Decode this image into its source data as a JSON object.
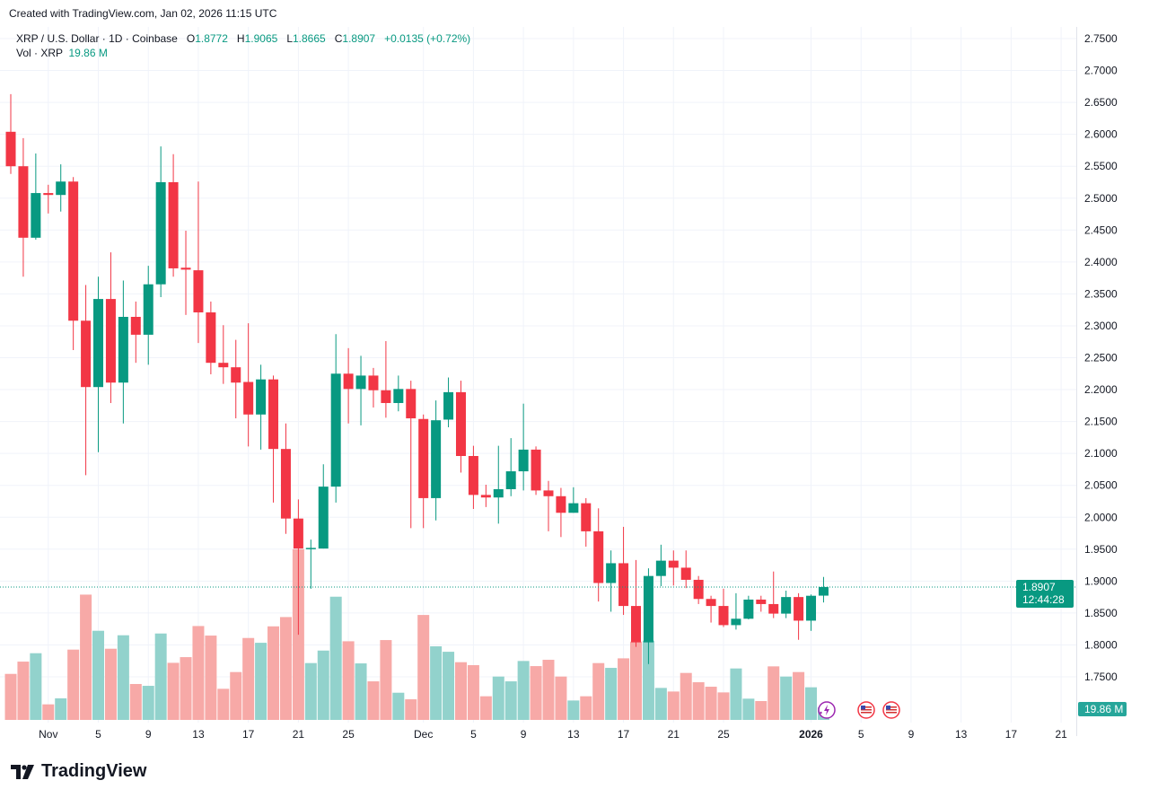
{
  "header": {
    "created": "Created with TradingView.com, Jan 02, 2026 11:15 UTC"
  },
  "legend": {
    "symbol": "XRP / U.S. Dollar · 1D · Coinbase",
    "o_label": "O",
    "o": "1.8772",
    "h_label": "H",
    "h": "1.9065",
    "l_label": "L",
    "l": "1.8665",
    "c_label": "C",
    "c": "1.8907",
    "change": "+0.0135 (+0.72%)",
    "vol_label": "Vol · XRP",
    "vol": "19.86 M"
  },
  "price_label": {
    "price": "1.8907",
    "countdown": "12:44:28"
  },
  "volume_label": "19.86 M",
  "logo": {
    "text": "TradingView"
  },
  "colors": {
    "up": "#089981",
    "down": "#f23645",
    "vol_up": "#92d2cc",
    "vol_down": "#f7a9a7",
    "grid": "#f0f3fa",
    "price_line": "#089981"
  },
  "event_icons": [
    "lightning-sparkle-icon",
    "us-flag-icon",
    "us-flag-icon"
  ],
  "chart_data": {
    "type": "candlestick",
    "title": "",
    "y_ticks": [
      "2.7500",
      "2.7000",
      "2.6500",
      "2.6000",
      "2.5500",
      "2.5000",
      "2.4500",
      "2.4000",
      "2.3500",
      "2.3000",
      "2.2500",
      "2.2000",
      "2.1500",
      "2.1000",
      "2.0500",
      "2.0000",
      "1.9500",
      "1.9000",
      "1.8500",
      "1.8000",
      "1.7500"
    ],
    "ylim": [
      1.75,
      2.75
    ],
    "x_ticks": [
      {
        "label": "Nov",
        "date": "2025-11-01"
      },
      {
        "label": "5",
        "date": "2025-11-05"
      },
      {
        "label": "9",
        "date": "2025-11-09"
      },
      {
        "label": "13",
        "date": "2025-11-13"
      },
      {
        "label": "17",
        "date": "2025-11-17"
      },
      {
        "label": "21",
        "date": "2025-11-21"
      },
      {
        "label": "25",
        "date": "2025-11-25"
      },
      {
        "label": "Dec",
        "date": "2025-12-01"
      },
      {
        "label": "5",
        "date": "2025-12-05"
      },
      {
        "label": "9",
        "date": "2025-12-09"
      },
      {
        "label": "13",
        "date": "2025-12-13"
      },
      {
        "label": "17",
        "date": "2025-12-17"
      },
      {
        "label": "21",
        "date": "2025-12-21"
      },
      {
        "label": "25",
        "date": "2025-12-25"
      },
      {
        "label": "2026",
        "date": "2026-01-01"
      },
      {
        "label": "5",
        "date": "2026-01-05"
      },
      {
        "label": "9",
        "date": "2026-01-09"
      },
      {
        "label": "13",
        "date": "2026-01-13"
      },
      {
        "label": "17",
        "date": "2026-01-17"
      },
      {
        "label": "21",
        "date": "2026-01-21"
      }
    ],
    "volume_unit": "M",
    "columns": [
      "date",
      "open",
      "high",
      "low",
      "close",
      "volume"
    ],
    "candles": [
      [
        "2025-10-29",
        2.604,
        2.663,
        2.538,
        2.55,
        72.8
      ],
      [
        "2025-10-30",
        2.55,
        2.594,
        2.377,
        2.438,
        92.2
      ],
      [
        "2025-10-31",
        2.438,
        2.57,
        2.435,
        2.508,
        105.5
      ],
      [
        "2025-11-01",
        2.508,
        2.521,
        2.476,
        2.505,
        24.6
      ],
      [
        "2025-11-02",
        2.505,
        2.553,
        2.479,
        2.526,
        34.1
      ],
      [
        "2025-11-03",
        2.526,
        2.533,
        2.262,
        2.308,
        111.2
      ],
      [
        "2025-11-04",
        2.308,
        2.364,
        2.066,
        2.204,
        198.2
      ],
      [
        "2025-11-05",
        2.204,
        2.377,
        2.102,
        2.342,
        141.0
      ],
      [
        "2025-11-06",
        2.342,
        2.415,
        2.179,
        2.211,
        112.6
      ],
      [
        "2025-11-07",
        2.211,
        2.371,
        2.147,
        2.314,
        133.9
      ],
      [
        "2025-11-08",
        2.314,
        2.338,
        2.242,
        2.286,
        56.8
      ],
      [
        "2025-11-09",
        2.286,
        2.394,
        2.239,
        2.365,
        53.9
      ],
      [
        "2025-11-10",
        2.365,
        2.581,
        2.345,
        2.525,
        136.7
      ],
      [
        "2025-11-11",
        2.525,
        2.569,
        2.377,
        2.39,
        90.3
      ],
      [
        "2025-11-12",
        2.391,
        2.449,
        2.317,
        2.388,
        99.3
      ],
      [
        "2025-11-13",
        2.387,
        2.526,
        2.273,
        2.321,
        148.5
      ],
      [
        "2025-11-14",
        2.321,
        2.338,
        2.224,
        2.242,
        133.4
      ],
      [
        "2025-11-15",
        2.242,
        2.301,
        2.209,
        2.235,
        49.2
      ],
      [
        "2025-11-16",
        2.235,
        2.278,
        2.155,
        2.211,
        75.7
      ],
      [
        "2025-11-17",
        2.212,
        2.304,
        2.111,
        2.161,
        129.6
      ],
      [
        "2025-11-18",
        2.161,
        2.239,
        2.106,
        2.216,
        122.0
      ],
      [
        "2025-11-19",
        2.216,
        2.222,
        2.023,
        2.107,
        148.0
      ],
      [
        "2025-11-20",
        2.107,
        2.147,
        1.974,
        1.998,
        162.7
      ],
      [
        "2025-11-21",
        1.998,
        2.028,
        1.816,
        1.951,
        270.0
      ],
      [
        "2025-11-22",
        1.95,
        1.965,
        1.888,
        1.952,
        89.9
      ],
      [
        "2025-11-23",
        1.951,
        2.083,
        1.951,
        2.048,
        109.7
      ],
      [
        "2025-11-24",
        2.048,
        2.287,
        2.023,
        2.225,
        194.9
      ],
      [
        "2025-11-25",
        2.225,
        2.265,
        2.147,
        2.201,
        124.4
      ],
      [
        "2025-11-26",
        2.201,
        2.253,
        2.144,
        2.222,
        89.4
      ],
      [
        "2025-11-27",
        2.222,
        2.234,
        2.172,
        2.199,
        61.0
      ],
      [
        "2025-11-28",
        2.199,
        2.276,
        2.156,
        2.179,
        126.3
      ],
      [
        "2025-11-29",
        2.179,
        2.222,
        2.166,
        2.201,
        43.0
      ],
      [
        "2025-11-30",
        2.201,
        2.214,
        1.983,
        2.155,
        32.6
      ],
      [
        "2025-12-01",
        2.154,
        2.161,
        1.983,
        2.03,
        166.0
      ],
      [
        "2025-12-02",
        2.03,
        2.183,
        1.995,
        2.152,
        116.4
      ],
      [
        "2025-12-03",
        2.153,
        2.219,
        2.141,
        2.196,
        107.8
      ],
      [
        "2025-12-04",
        2.196,
        2.214,
        2.07,
        2.096,
        91.3
      ],
      [
        "2025-12-05",
        2.096,
        2.112,
        2.013,
        2.035,
        86.6
      ],
      [
        "2025-12-06",
        2.035,
        2.051,
        2.016,
        2.031,
        37.4
      ],
      [
        "2025-12-07",
        2.031,
        2.112,
        1.99,
        2.044,
        68.6
      ],
      [
        "2025-12-08",
        2.044,
        2.124,
        2.033,
        2.072,
        61.0
      ],
      [
        "2025-12-09",
        2.072,
        2.178,
        2.042,
        2.106,
        93.2
      ],
      [
        "2025-12-10",
        2.106,
        2.111,
        2.035,
        2.042,
        85.1
      ],
      [
        "2025-12-11",
        2.042,
        2.057,
        1.978,
        2.033,
        95.1
      ],
      [
        "2025-12-12",
        2.033,
        2.046,
        1.969,
        2.007,
        68.6
      ],
      [
        "2025-12-13",
        2.007,
        2.047,
        2.007,
        2.022,
        30.7
      ],
      [
        "2025-12-14",
        2.022,
        2.03,
        1.954,
        1.978,
        37.4
      ],
      [
        "2025-12-15",
        1.978,
        2.014,
        1.868,
        1.897,
        89.9
      ],
      [
        "2025-12-16",
        1.897,
        1.948,
        1.852,
        1.928,
        82.3
      ],
      [
        "2025-12-17",
        1.928,
        1.985,
        1.847,
        1.861,
        97.4
      ],
      [
        "2025-12-18",
        1.861,
        1.933,
        1.797,
        1.804,
        123.9
      ],
      [
        "2025-12-19",
        1.804,
        1.92,
        1.77,
        1.908,
        125.3
      ],
      [
        "2025-12-20",
        1.908,
        1.957,
        1.892,
        1.932,
        50.6
      ],
      [
        "2025-12-21",
        1.932,
        1.948,
        1.893,
        1.921,
        44.9
      ],
      [
        "2025-12-22",
        1.921,
        1.948,
        1.889,
        1.902,
        74.3
      ],
      [
        "2025-12-23",
        1.902,
        1.908,
        1.864,
        1.872,
        59.6
      ],
      [
        "2025-12-24",
        1.872,
        1.877,
        1.835,
        1.861,
        52.5
      ],
      [
        "2025-12-25",
        1.861,
        1.888,
        1.828,
        1.831,
        43.5
      ],
      [
        "2025-12-26",
        1.831,
        1.881,
        1.824,
        1.841,
        81.4
      ],
      [
        "2025-12-27",
        1.841,
        1.877,
        1.84,
        1.871,
        33.6
      ],
      [
        "2025-12-28",
        1.871,
        1.877,
        1.852,
        1.864,
        29.8
      ],
      [
        "2025-12-29",
        1.864,
        1.915,
        1.842,
        1.849,
        84.7
      ],
      [
        "2025-12-30",
        1.849,
        1.885,
        1.842,
        1.875,
        68.6
      ],
      [
        "2025-12-31",
        1.875,
        1.881,
        1.808,
        1.838,
        75.7
      ],
      [
        "2026-01-01",
        1.838,
        1.879,
        1.822,
        1.877,
        51.6
      ],
      [
        "2026-01-02",
        1.8772,
        1.9065,
        1.8665,
        1.8907,
        19.86
      ]
    ],
    "last_price": 1.8907,
    "grid": true
  }
}
